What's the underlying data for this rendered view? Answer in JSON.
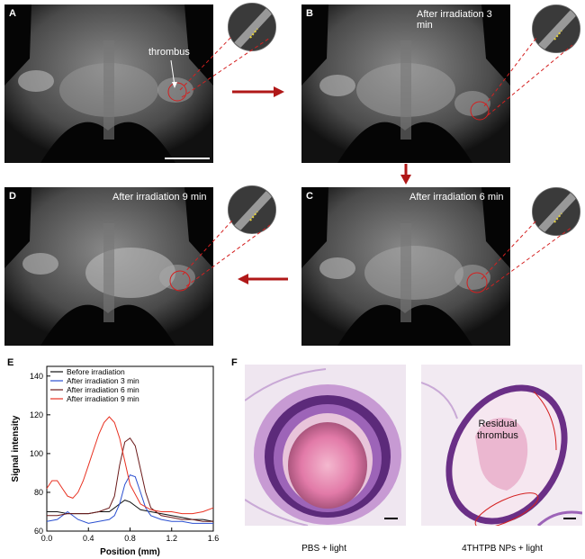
{
  "panels": {
    "A": {
      "label": "A",
      "annotation": "thrombus"
    },
    "B": {
      "label": "B",
      "title": "After irradiation 3 min"
    },
    "C": {
      "label": "C",
      "title": "After irradiation  6 min"
    },
    "D": {
      "label": "D",
      "title": "After irradiation  9 min"
    },
    "E": {
      "label": "E"
    },
    "F": {
      "label": "F",
      "left_caption": "PBS + light",
      "right_caption": "4THTPB NPs + light",
      "right_annotation_line1": "Residual",
      "right_annotation_line2": "thrombus"
    }
  },
  "colors": {
    "arrow": "#b01818",
    "dashed_line": "#d42020"
  },
  "chart_data": {
    "type": "line",
    "xlabel": "Position (mm)",
    "ylabel": "Signal intensity",
    "xlim": [
      0,
      1.6
    ],
    "ylim": [
      60,
      145
    ],
    "xticks": [
      "0.0",
      "0.4",
      "0.8",
      "1.2",
      "1.6"
    ],
    "yticks": [
      "60",
      "80",
      "100",
      "120",
      "140"
    ],
    "grid": false,
    "legend": "top-left",
    "series": [
      {
        "name": "Before irradiation",
        "color": "#111111",
        "x": [
          0.0,
          0.1,
          0.2,
          0.3,
          0.4,
          0.5,
          0.6,
          0.65,
          0.7,
          0.75,
          0.8,
          0.85,
          0.9,
          1.0,
          1.1,
          1.2,
          1.3,
          1.4,
          1.5,
          1.6
        ],
        "y": [
          70,
          70,
          69,
          69,
          69,
          70,
          70,
          72,
          74,
          76,
          75,
          73,
          71,
          70,
          69,
          68,
          67,
          66,
          66,
          65
        ]
      },
      {
        "name": "After irradiation 3 min",
        "color": "#2a4fd0",
        "x": [
          0.0,
          0.1,
          0.2,
          0.3,
          0.4,
          0.5,
          0.6,
          0.65,
          0.7,
          0.75,
          0.8,
          0.85,
          0.9,
          0.95,
          1.0,
          1.1,
          1.2,
          1.3,
          1.4,
          1.5,
          1.6
        ],
        "y": [
          65,
          66,
          70,
          66,
          64,
          65,
          66,
          68,
          74,
          84,
          89,
          88,
          80,
          72,
          68,
          66,
          65,
          65,
          64,
          64,
          64
        ]
      },
      {
        "name": "After irradiation 6 min",
        "color": "#6b1a1a",
        "x": [
          0.0,
          0.1,
          0.2,
          0.3,
          0.4,
          0.5,
          0.6,
          0.65,
          0.7,
          0.75,
          0.8,
          0.85,
          0.9,
          0.95,
          1.0,
          1.1,
          1.2,
          1.3,
          1.4,
          1.5,
          1.6
        ],
        "y": [
          68,
          68,
          69,
          69,
          69,
          70,
          72,
          78,
          94,
          106,
          108,
          104,
          92,
          80,
          72,
          68,
          67,
          66,
          66,
          65,
          65
        ]
      },
      {
        "name": "After irradiation 9 min",
        "color": "#e83020",
        "x": [
          0.0,
          0.05,
          0.1,
          0.15,
          0.2,
          0.25,
          0.3,
          0.35,
          0.4,
          0.45,
          0.5,
          0.55,
          0.6,
          0.65,
          0.7,
          0.75,
          0.8,
          0.9,
          1.0,
          1.1,
          1.2,
          1.3,
          1.4,
          1.5,
          1.6
        ],
        "y": [
          82,
          86,
          86,
          82,
          78,
          77,
          80,
          86,
          94,
          102,
          110,
          116,
          119,
          116,
          108,
          96,
          84,
          74,
          71,
          70,
          70,
          69,
          69,
          70,
          72
        ]
      }
    ]
  }
}
